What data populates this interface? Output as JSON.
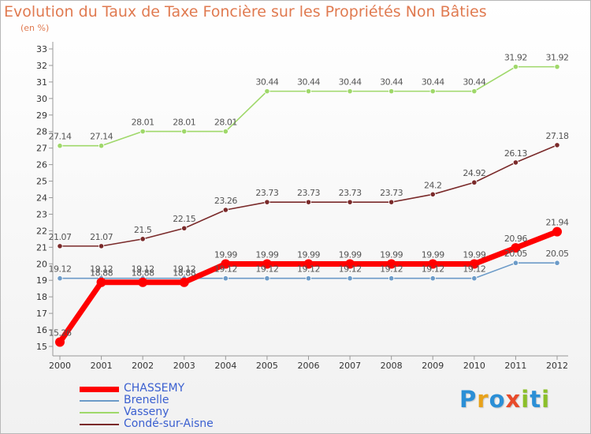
{
  "chart_data": {
    "type": "line",
    "title": "Evolution du Taux de Taxe Foncière sur les Propriétés Non Bâties",
    "ylabel": "(en %)",
    "xlabel": "",
    "ylim": [
      15,
      33
    ],
    "yticks": [
      15,
      16,
      17,
      18,
      19,
      20,
      21,
      22,
      23,
      24,
      25,
      26,
      27,
      28,
      29,
      30,
      31,
      32,
      33
    ],
    "categories": [
      "2000",
      "2001",
      "2002",
      "2003",
      "2004",
      "2005",
      "2006",
      "2007",
      "2008",
      "2009",
      "2010",
      "2011",
      "2012"
    ],
    "series": [
      {
        "name": "CHASSEMY",
        "color": "#ff0000",
        "values": [
          15.26,
          18.88,
          18.88,
          18.88,
          19.99,
          19.99,
          19.99,
          19.99,
          19.99,
          19.99,
          19.99,
          20.96,
          21.94
        ],
        "labels": [
          "15.26",
          "18.88",
          "18.88",
          "18.88",
          "19.99",
          "19.99",
          "19.99",
          "19.99",
          "19.99",
          "19.99",
          "19.99",
          "20.96",
          "21.94"
        ]
      },
      {
        "name": "Brenelle",
        "color": "#6c9bc8",
        "values": [
          19.12,
          19.12,
          19.12,
          19.12,
          19.12,
          19.12,
          19.12,
          19.12,
          19.12,
          19.12,
          19.12,
          20.05,
          20.05
        ],
        "labels": [
          "19.12",
          "19.12",
          "19.12",
          "19.12",
          "19.12",
          "19.12",
          "19.12",
          "19.12",
          "19.12",
          "19.12",
          "19.12",
          "20.05",
          "20.05"
        ]
      },
      {
        "name": "Vasseny",
        "color": "#9fd86a",
        "values": [
          27.14,
          27.14,
          28.01,
          28.01,
          28.01,
          30.44,
          30.44,
          30.44,
          30.44,
          30.44,
          30.44,
          31.92,
          31.92
        ],
        "labels": [
          "27.14",
          "27.14",
          "28.01",
          "28.01",
          "28.01",
          "30.44",
          "30.44",
          "30.44",
          "30.44",
          "30.44",
          "30.44",
          "31.92",
          "31.92"
        ]
      },
      {
        "name": "Condé-sur-Aisne",
        "color": "#7a2a2a",
        "values": [
          21.07,
          21.07,
          21.5,
          22.15,
          23.26,
          23.73,
          23.73,
          23.73,
          23.73,
          24.2,
          24.92,
          26.13,
          27.18
        ],
        "labels": [
          "21.07",
          "21.07",
          "21.5",
          "22.15",
          "23.26",
          "23.73",
          "23.73",
          "23.73",
          "23.73",
          "24.2",
          "24.92",
          "26.13",
          "27.18"
        ]
      }
    ],
    "grid": false,
    "legend": "bottom-left"
  },
  "colors": {
    "title": "#e07a50",
    "axis": "#999999",
    "tick_label": "#333333",
    "value_label": "#555555",
    "legend_text": "#3a5fd0"
  },
  "logo": {
    "letters": [
      "P",
      "r",
      "o",
      "x",
      "i",
      "t",
      "i"
    ],
    "colors": [
      "#2b8fd6",
      "#e8a21b",
      "#2b8fd6",
      "#e84b2a",
      "#8bbf2a",
      "#2b8fd6",
      "#8bbf2a"
    ]
  }
}
